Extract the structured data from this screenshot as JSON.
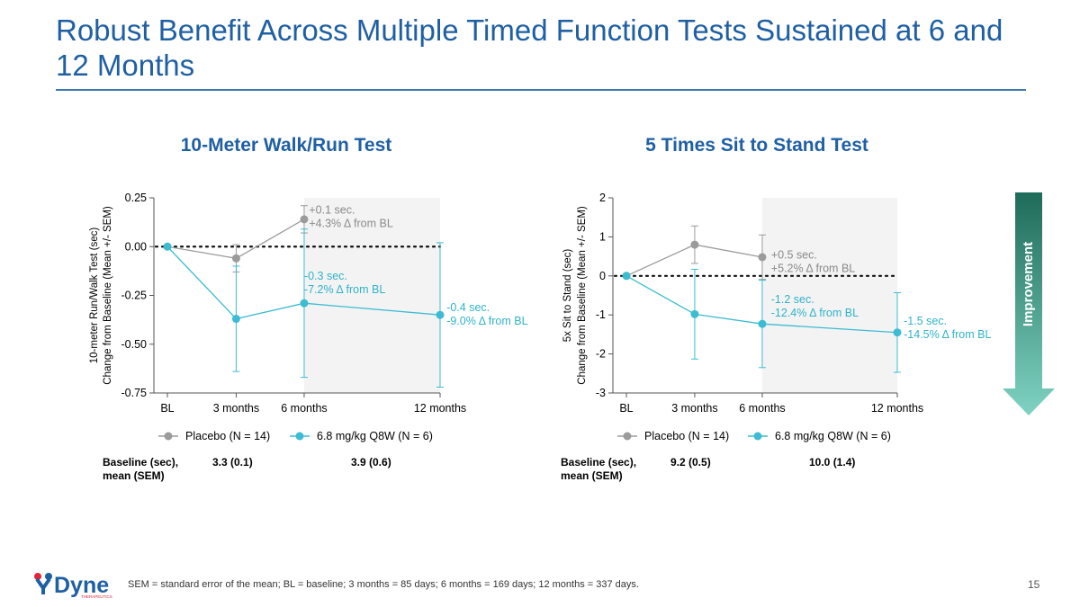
{
  "slide": {
    "title": "Robust Benefit Across Multiple Timed Function Tests Sustained at 6 and 12 Months",
    "footnote": "SEM = standard error of the mean; BL = baseline; 3 months = 85 days; 6 months = 169 days; 12 months = 337 days.",
    "page_number": "15",
    "improvement_label": "Improvement",
    "logo_text": "Dyne",
    "logo_subtext": "THERAPEUTICS",
    "colors": {
      "title": "#1f5fa3",
      "placebo": "#9b9b9b",
      "treatment": "#3cbcd2",
      "arrow_top": "#1f6b5a",
      "arrow_bottom": "#7fd3c2"
    }
  },
  "chart_data": [
    {
      "type": "line",
      "title": "10-Meter Walk/Run Test",
      "ylabel": [
        "10-meter Run/Walk  Test (sec)",
        "Change from Baseline (Mean +/-  SEM)"
      ],
      "x_labels": [
        "BL",
        "3 months",
        "6 months",
        "12 months"
      ],
      "x_days": [
        0,
        85,
        169,
        337
      ],
      "ylim": [
        -0.75,
        0.25
      ],
      "yticks": [
        0.25,
        0.0,
        -0.25,
        -0.5,
        -0.75
      ],
      "ytick_labels": [
        "0.25",
        "0.00",
        "-0.25",
        "-0.50",
        "-0.75"
      ],
      "shaded_from_day": 169,
      "series": [
        {
          "name": "Placebo (N = 14)",
          "color": "#9b9b9b",
          "x": [
            0,
            85,
            169
          ],
          "values": [
            0.0,
            -0.06,
            0.14
          ],
          "err": [
            0,
            0.07,
            0.07
          ]
        },
        {
          "name": "6.8 mg/kg Q8W (N = 6)",
          "color": "#3cbcd2",
          "x": [
            0,
            85,
            169,
            337
          ],
          "values": [
            0.0,
            -0.37,
            -0.29,
            -0.35
          ],
          "err": [
            0,
            0.27,
            0.38,
            0.37
          ]
        }
      ],
      "annotations": [
        {
          "series": 0,
          "point": 2,
          "lines": [
            "+0.1 sec.",
            "+4.3% Δ from BL"
          ],
          "at_x": 175,
          "at_y": 0.17
        },
        {
          "series": 1,
          "point": 2,
          "lines": [
            "-0.3 sec.",
            "-7.2% Δ from BL"
          ],
          "at_x": 169,
          "at_y": -0.17
        },
        {
          "series": 1,
          "point": 3,
          "lines": [
            "-0.4 sec.",
            "-9.0% Δ from BL"
          ],
          "at_x": 345,
          "at_y": -0.33
        }
      ],
      "baseline": {
        "label": [
          "Baseline (sec),",
          "mean (SEM)"
        ],
        "placebo": "3.3 (0.1)",
        "treatment": "3.9 (0.6)"
      }
    },
    {
      "type": "line",
      "title": "5 Times Sit to Stand Test",
      "ylabel": [
        "5x  Sit to  Stand (sec)",
        "Change from Baseline (Mean +/-  SEM)"
      ],
      "x_labels": [
        "BL",
        "3 months",
        "6 months",
        "12 months"
      ],
      "x_days": [
        0,
        85,
        169,
        337
      ],
      "ylim": [
        -3,
        2
      ],
      "yticks": [
        2,
        1,
        0,
        -1,
        -2,
        -3
      ],
      "ytick_labels": [
        "2",
        "1",
        "0",
        "-1",
        "-2",
        "-3"
      ],
      "shaded_from_day": 169,
      "series": [
        {
          "name": "Placebo (N = 14)",
          "color": "#9b9b9b",
          "x": [
            0,
            85,
            169
          ],
          "values": [
            0.0,
            0.8,
            0.48
          ],
          "err": [
            0,
            0.48,
            0.57
          ]
        },
        {
          "name": "6.8 mg/kg Q8W (N = 6)",
          "color": "#3cbcd2",
          "x": [
            0,
            85,
            169,
            337
          ],
          "values": [
            0.0,
            -0.98,
            -1.23,
            -1.45
          ],
          "err": [
            0,
            1.15,
            1.12,
            1.02
          ]
        }
      ],
      "annotations": [
        {
          "series": 0,
          "point": 2,
          "lines": [
            "+0.5 sec.",
            "+5.2% Δ from BL"
          ],
          "at_x": 180,
          "at_y": 0.45
        },
        {
          "series": 1,
          "point": 2,
          "lines": [
            "-1.2 sec.",
            "-12.4% Δ from BL"
          ],
          "at_x": 180,
          "at_y": -0.7
        },
        {
          "series": 1,
          "point": 3,
          "lines": [
            "-1.5 sec.",
            "-14.5% Δ from BL"
          ],
          "at_x": 345,
          "at_y": -1.25
        }
      ],
      "baseline": {
        "label": [
          "Baseline (sec),",
          "mean (SEM)"
        ],
        "placebo": "9.2 (0.5)",
        "treatment": "10.0 (1.4)"
      }
    }
  ]
}
